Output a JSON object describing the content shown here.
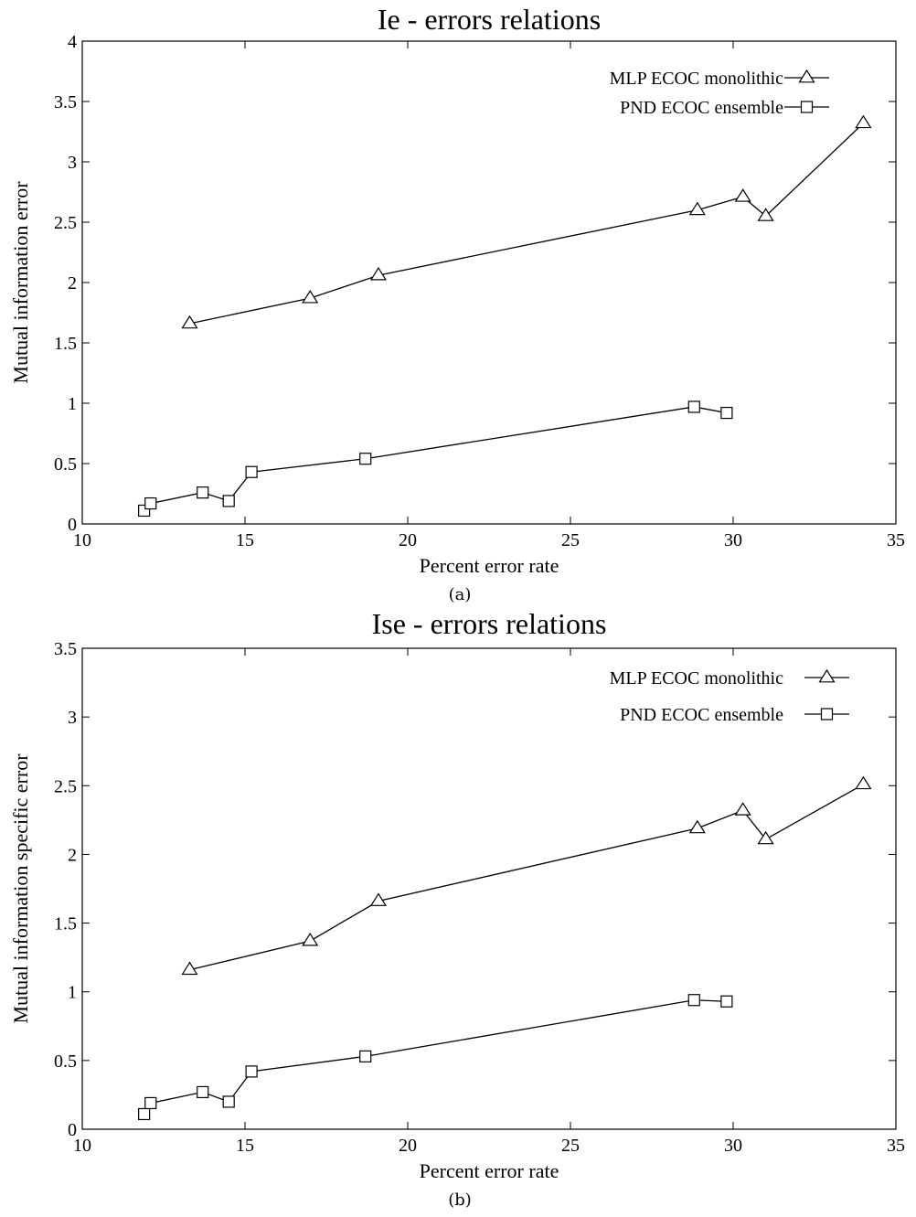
{
  "chart_data": [
    {
      "type": "line",
      "title": "Ie - errors relations",
      "xlabel": "Percent error rate",
      "ylabel": "Mutual information error",
      "caption": "(a)",
      "xlim": [
        10,
        35
      ],
      "ylim": [
        0,
        4
      ],
      "xticks": [
        10,
        15,
        20,
        25,
        30,
        35
      ],
      "yticks": [
        0,
        0.5,
        1,
        1.5,
        2,
        2.5,
        3,
        3.5,
        4
      ],
      "grid": false,
      "legend_position": "top-right",
      "series": [
        {
          "name": "MLP ECOC monolithic",
          "marker": "triangle",
          "x": [
            13.3,
            17.0,
            19.1,
            28.9,
            30.3,
            31.0,
            34.0
          ],
          "y": [
            1.66,
            1.87,
            2.06,
            2.6,
            2.71,
            2.55,
            3.32
          ]
        },
        {
          "name": "PND ECOC ensemble",
          "marker": "square",
          "x": [
            11.9,
            12.1,
            13.7,
            14.5,
            15.2,
            18.7,
            28.8,
            29.8
          ],
          "y": [
            0.11,
            0.17,
            0.26,
            0.19,
            0.43,
            0.54,
            0.97,
            0.92
          ]
        }
      ]
    },
    {
      "type": "line",
      "title": "Ise - errors relations",
      "xlabel": "Percent error rate",
      "ylabel": "Mutual information specific error",
      "caption": "(b)",
      "xlim": [
        10,
        35
      ],
      "ylim": [
        0,
        3.5
      ],
      "xticks": [
        10,
        15,
        20,
        25,
        30,
        35
      ],
      "yticks": [
        0,
        0.5,
        1,
        1.5,
        2,
        2.5,
        3,
        3.5
      ],
      "grid": false,
      "legend_position": "top-right",
      "series": [
        {
          "name": "MLP ECOC monolithic",
          "marker": "triangle",
          "x": [
            13.3,
            17.0,
            19.1,
            28.9,
            30.3,
            31.0,
            34.0
          ],
          "y": [
            1.16,
            1.37,
            1.66,
            2.19,
            2.32,
            2.11,
            2.51
          ]
        },
        {
          "name": "PND ECOC ensemble",
          "marker": "square",
          "x": [
            11.9,
            12.1,
            13.7,
            14.5,
            15.2,
            18.7,
            28.8,
            29.8
          ],
          "y": [
            0.11,
            0.19,
            0.27,
            0.2,
            0.42,
            0.53,
            0.94,
            0.93
          ]
        }
      ]
    }
  ]
}
